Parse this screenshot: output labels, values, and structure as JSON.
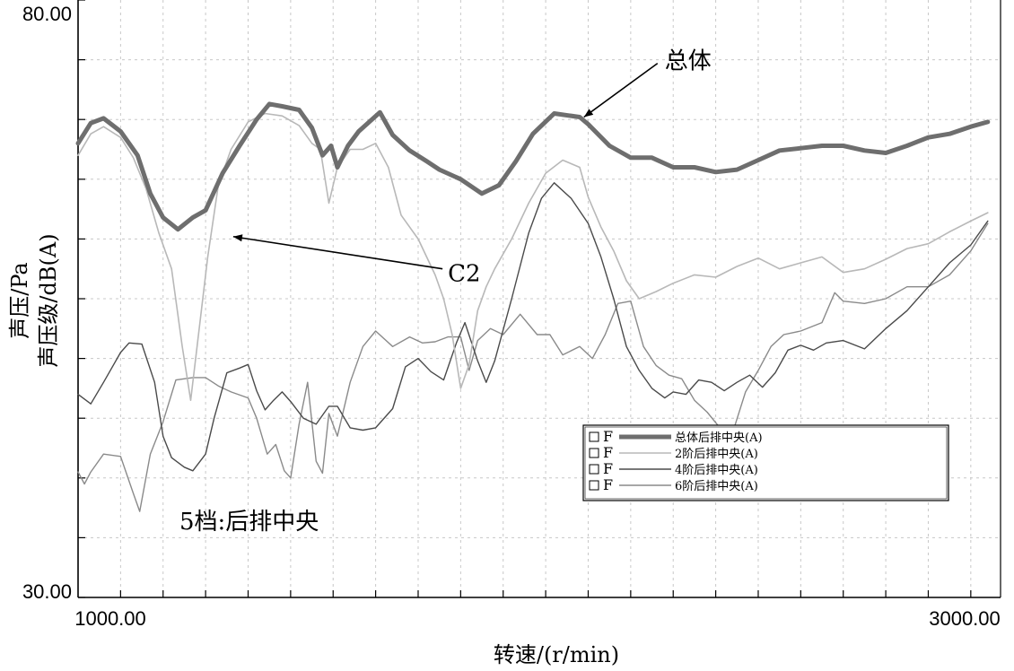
{
  "chart_data": {
    "type": "line",
    "xlabel": "转速/(r/min)",
    "ylabel_top": "声压/Pa",
    "ylabel_bottom": "声压级/dB(A)",
    "xlim": [
      900,
      3070
    ],
    "ylim": [
      30,
      80
    ],
    "x_tick_labels": [
      {
        "x": 1000,
        "label": "1000.00"
      },
      {
        "x": 3000,
        "label": "3000.00"
      }
    ],
    "y_tick_labels": [
      {
        "y": 80,
        "label": "80.00"
      },
      {
        "y": 30,
        "label": "30.00"
      }
    ],
    "annotation_text": "5档:后排中央",
    "series": [
      {
        "name": "总体后排中央(A)",
        "color": "#6e6e6e",
        "width": 5,
        "points": [
          [
            900,
            68.0
          ],
          [
            930,
            69.7
          ],
          [
            960,
            70.1
          ],
          [
            1000,
            69.0
          ],
          [
            1040,
            67.0
          ],
          [
            1070,
            63.8
          ],
          [
            1100,
            61.8
          ],
          [
            1135,
            60.8
          ],
          [
            1170,
            61.8
          ],
          [
            1200,
            62.4
          ],
          [
            1240,
            65.5
          ],
          [
            1280,
            67.8
          ],
          [
            1320,
            70.0
          ],
          [
            1350,
            71.3
          ],
          [
            1380,
            71.1
          ],
          [
            1420,
            70.8
          ],
          [
            1450,
            69.3
          ],
          [
            1475,
            67.0
          ],
          [
            1495,
            67.8
          ],
          [
            1510,
            66.0
          ],
          [
            1535,
            67.8
          ],
          [
            1560,
            69.0
          ],
          [
            1610,
            70.6
          ],
          [
            1640,
            68.7
          ],
          [
            1680,
            67.4
          ],
          [
            1720,
            66.5
          ],
          [
            1750,
            65.8
          ],
          [
            1800,
            65.0
          ],
          [
            1850,
            63.8
          ],
          [
            1890,
            64.5
          ],
          [
            1930,
            66.5
          ],
          [
            1970,
            68.8
          ],
          [
            2020,
            70.5
          ],
          [
            2080,
            70.2
          ],
          [
            2100,
            69.6
          ],
          [
            2150,
            67.8
          ],
          [
            2200,
            66.8
          ],
          [
            2250,
            66.8
          ],
          [
            2300,
            66.0
          ],
          [
            2350,
            66.0
          ],
          [
            2400,
            65.6
          ],
          [
            2450,
            65.8
          ],
          [
            2500,
            66.6
          ],
          [
            2550,
            67.4
          ],
          [
            2600,
            67.6
          ],
          [
            2650,
            67.8
          ],
          [
            2700,
            67.8
          ],
          [
            2750,
            67.4
          ],
          [
            2800,
            67.2
          ],
          [
            2850,
            67.8
          ],
          [
            2900,
            68.5
          ],
          [
            2950,
            68.8
          ],
          [
            3000,
            69.4
          ],
          [
            3040,
            69.8
          ]
        ]
      },
      {
        "name": "2阶后排中央(A)",
        "color": "#b8b8b8",
        "width": 1.6,
        "points": [
          [
            900,
            67.0
          ],
          [
            930,
            68.8
          ],
          [
            960,
            69.4
          ],
          [
            1000,
            68.5
          ],
          [
            1030,
            66.8
          ],
          [
            1060,
            64.2
          ],
          [
            1090,
            60.5
          ],
          [
            1120,
            57.5
          ],
          [
            1145,
            51.0
          ],
          [
            1165,
            46.5
          ],
          [
            1185,
            52.5
          ],
          [
            1205,
            58.5
          ],
          [
            1230,
            64.5
          ],
          [
            1260,
            67.5
          ],
          [
            1300,
            69.8
          ],
          [
            1340,
            70.5
          ],
          [
            1380,
            70.3
          ],
          [
            1420,
            69.5
          ],
          [
            1450,
            68.0
          ],
          [
            1470,
            67.5
          ],
          [
            1490,
            63.0
          ],
          [
            1510,
            66.0
          ],
          [
            1540,
            67.5
          ],
          [
            1570,
            67.5
          ],
          [
            1600,
            68.0
          ],
          [
            1630,
            66.0
          ],
          [
            1660,
            62.0
          ],
          [
            1700,
            60.0
          ],
          [
            1740,
            57.0
          ],
          [
            1760,
            55.0
          ],
          [
            1780,
            52.0
          ],
          [
            1800,
            47.5
          ],
          [
            1820,
            49.5
          ],
          [
            1840,
            54.0
          ],
          [
            1860,
            56.0
          ],
          [
            1880,
            57.5
          ],
          [
            1920,
            60.0
          ],
          [
            1960,
            63.0
          ],
          [
            2000,
            65.5
          ],
          [
            2040,
            66.6
          ],
          [
            2080,
            66.0
          ],
          [
            2100,
            63.5
          ],
          [
            2130,
            61.0
          ],
          [
            2160,
            59.0
          ],
          [
            2190,
            56.5
          ],
          [
            2220,
            55.0
          ],
          [
            2260,
            55.6
          ],
          [
            2300,
            56.3
          ],
          [
            2350,
            57.0
          ],
          [
            2400,
            56.8
          ],
          [
            2450,
            57.7
          ],
          [
            2500,
            58.4
          ],
          [
            2550,
            57.5
          ],
          [
            2600,
            58.0
          ],
          [
            2650,
            58.5
          ],
          [
            2700,
            57.2
          ],
          [
            2750,
            57.5
          ],
          [
            2800,
            58.3
          ],
          [
            2850,
            59.2
          ],
          [
            2900,
            59.6
          ],
          [
            2950,
            60.6
          ],
          [
            3000,
            61.5
          ],
          [
            3040,
            62.2
          ]
        ]
      },
      {
        "name": "4阶后排中央(A)",
        "color": "#4a4a4a",
        "width": 1.4,
        "points": [
          [
            900,
            47.0
          ],
          [
            930,
            46.2
          ],
          [
            960,
            48.0
          ],
          [
            1000,
            50.5
          ],
          [
            1020,
            51.3
          ],
          [
            1050,
            51.2
          ],
          [
            1080,
            48.0
          ],
          [
            1100,
            43.5
          ],
          [
            1120,
            41.7
          ],
          [
            1150,
            40.9
          ],
          [
            1170,
            40.6
          ],
          [
            1200,
            42.0
          ],
          [
            1220,
            45.0
          ],
          [
            1250,
            48.8
          ],
          [
            1280,
            49.2
          ],
          [
            1300,
            49.5
          ],
          [
            1320,
            47.3
          ],
          [
            1340,
            45.7
          ],
          [
            1360,
            46.5
          ],
          [
            1380,
            47.2
          ],
          [
            1400,
            46.4
          ],
          [
            1430,
            45.0
          ],
          [
            1460,
            44.5
          ],
          [
            1490,
            46.0
          ],
          [
            1510,
            46.0
          ],
          [
            1540,
            44.2
          ],
          [
            1570,
            44.0
          ],
          [
            1600,
            44.2
          ],
          [
            1640,
            45.8
          ],
          [
            1670,
            49.3
          ],
          [
            1700,
            50.0
          ],
          [
            1730,
            48.9
          ],
          [
            1760,
            48.2
          ],
          [
            1790,
            51.3
          ],
          [
            1810,
            53.0
          ],
          [
            1840,
            49.8
          ],
          [
            1860,
            48.0
          ],
          [
            1880,
            49.8
          ],
          [
            1920,
            55.0
          ],
          [
            1960,
            60.5
          ],
          [
            1990,
            63.4
          ],
          [
            2020,
            64.7
          ],
          [
            2060,
            63.4
          ],
          [
            2100,
            61.3
          ],
          [
            2130,
            58.5
          ],
          [
            2160,
            55.0
          ],
          [
            2190,
            51.0
          ],
          [
            2220,
            49.0
          ],
          [
            2250,
            47.5
          ],
          [
            2280,
            46.7
          ],
          [
            2300,
            47.2
          ],
          [
            2330,
            47.0
          ],
          [
            2360,
            48.2
          ],
          [
            2390,
            48.0
          ],
          [
            2420,
            47.3
          ],
          [
            2450,
            48.0
          ],
          [
            2480,
            48.6
          ],
          [
            2510,
            47.6
          ],
          [
            2540,
            48.8
          ],
          [
            2570,
            50.7
          ],
          [
            2600,
            51.1
          ],
          [
            2630,
            50.7
          ],
          [
            2660,
            51.3
          ],
          [
            2700,
            51.5
          ],
          [
            2750,
            50.8
          ],
          [
            2800,
            52.5
          ],
          [
            2850,
            54.0
          ],
          [
            2900,
            56.0
          ],
          [
            2950,
            58.0
          ],
          [
            3000,
            59.5
          ],
          [
            3040,
            61.5
          ]
        ]
      },
      {
        "name": "6阶后排中央(A)",
        "color": "#8a8a8a",
        "width": 1.4,
        "points": [
          [
            900,
            40.5
          ],
          [
            915,
            39.5
          ],
          [
            930,
            40.5
          ],
          [
            960,
            42.0
          ],
          [
            1000,
            41.8
          ],
          [
            1030,
            38.7
          ],
          [
            1045,
            37.2
          ],
          [
            1070,
            42.0
          ],
          [
            1100,
            44.7
          ],
          [
            1130,
            48.2
          ],
          [
            1170,
            48.4
          ],
          [
            1200,
            48.4
          ],
          [
            1230,
            47.7
          ],
          [
            1260,
            47.2
          ],
          [
            1300,
            46.7
          ],
          [
            1320,
            45.0
          ],
          [
            1345,
            42.0
          ],
          [
            1365,
            42.8
          ],
          [
            1385,
            40.6
          ],
          [
            1400,
            40.0
          ],
          [
            1420,
            44.5
          ],
          [
            1440,
            48.0
          ],
          [
            1460,
            41.4
          ],
          [
            1475,
            40.4
          ],
          [
            1490,
            45.4
          ],
          [
            1510,
            43.5
          ],
          [
            1540,
            48.0
          ],
          [
            1570,
            51.0
          ],
          [
            1600,
            52.3
          ],
          [
            1640,
            51.0
          ],
          [
            1680,
            51.8
          ],
          [
            1710,
            51.3
          ],
          [
            1740,
            51.4
          ],
          [
            1770,
            51.8
          ],
          [
            1800,
            51.8
          ],
          [
            1820,
            49.0
          ],
          [
            1840,
            51.5
          ],
          [
            1870,
            52.5
          ],
          [
            1900,
            52.0
          ],
          [
            1940,
            53.7
          ],
          [
            1980,
            52.0
          ],
          [
            2010,
            52.0
          ],
          [
            2040,
            50.3
          ],
          [
            2080,
            51.0
          ],
          [
            2110,
            50.0
          ],
          [
            2140,
            52.0
          ],
          [
            2170,
            54.6
          ],
          [
            2200,
            54.8
          ],
          [
            2230,
            51.0
          ],
          [
            2260,
            49.4
          ],
          [
            2290,
            48.6
          ],
          [
            2320,
            48.3
          ],
          [
            2350,
            46.5
          ],
          [
            2380,
            45.5
          ],
          [
            2410,
            44.2
          ],
          [
            2440,
            43.8
          ],
          [
            2470,
            47.2
          ],
          [
            2500,
            49.0
          ],
          [
            2530,
            51.0
          ],
          [
            2560,
            52.0
          ],
          [
            2600,
            52.3
          ],
          [
            2650,
            53.0
          ],
          [
            2680,
            55.5
          ],
          [
            2700,
            54.8
          ],
          [
            2750,
            54.6
          ],
          [
            2800,
            55.0
          ],
          [
            2850,
            56.0
          ],
          [
            2900,
            56.0
          ],
          [
            2950,
            57.0
          ],
          [
            3000,
            59.0
          ],
          [
            3040,
            61.3
          ]
        ]
      }
    ],
    "callouts": [
      {
        "text": "总体",
        "tx": 2280,
        "ty": 75.0,
        "ax": 2090,
        "ay": 70.2
      },
      {
        "text": "C2",
        "tx": 1770,
        "ty": 57.2,
        "ax": 1265,
        "ay": 60.2
      }
    ],
    "legend": {
      "placement": "bottom-right",
      "checkbox_label": "F",
      "items": [
        "总体后排中央(A)",
        "2阶后排中央(A)",
        "4阶后排中央(A)",
        "6阶后排中央(A)"
      ]
    }
  }
}
